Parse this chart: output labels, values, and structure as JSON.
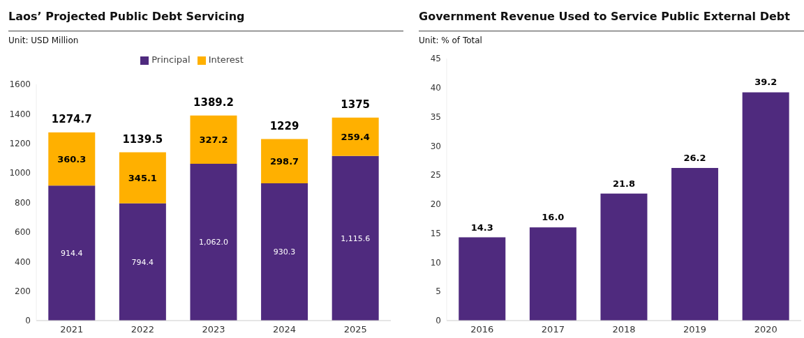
{
  "chart_data": [
    {
      "type": "bar",
      "title": "Laos’ Projected Public Debt Servicing",
      "subtitle": "Unit: USD Million",
      "categories": [
        "2021",
        "2022",
        "2023",
        "2024",
        "2025"
      ],
      "stacked": true,
      "legend": "top",
      "ylim": [
        0,
        1600
      ],
      "yticks": [
        0,
        200,
        400,
        600,
        800,
        1000,
        1200,
        1400,
        1600
      ],
      "grid": false,
      "series": [
        {
          "name": "Principal",
          "color": "#4f2a7e",
          "values": [
            914.4,
            794.4,
            1062.0,
            930.3,
            1115.6
          ],
          "value_labels": [
            "914.4",
            "794.4",
            "1,062.0",
            "930.3",
            "1,115.6"
          ]
        },
        {
          "name": "Interest",
          "color": "#ffb000",
          "values": [
            360.3,
            345.1,
            327.2,
            298.7,
            259.4
          ],
          "value_labels": [
            "360.3",
            "345.1",
            "327.2",
            "298.7",
            "259.4"
          ]
        }
      ],
      "totals": [
        "1274.7",
        "1139.5",
        "1389.2",
        "1229",
        "1375"
      ]
    },
    {
      "type": "bar",
      "title": "Government Revenue Used to Service Public External Debt",
      "subtitle": "Unit: % of Total",
      "categories": [
        "2016",
        "2017",
        "2018",
        "2019",
        "2020"
      ],
      "ylim": [
        0,
        45
      ],
      "yticks": [
        0,
        5,
        10,
        15,
        20,
        25,
        30,
        35,
        40,
        45
      ],
      "grid": false,
      "series": [
        {
          "color": "#4f2a7e",
          "values": [
            14.3,
            16.0,
            21.8,
            26.2,
            39.2
          ],
          "value_labels": [
            "14.3",
            "16.0",
            "21.8",
            "26.2",
            "39.2"
          ]
        }
      ]
    }
  ]
}
